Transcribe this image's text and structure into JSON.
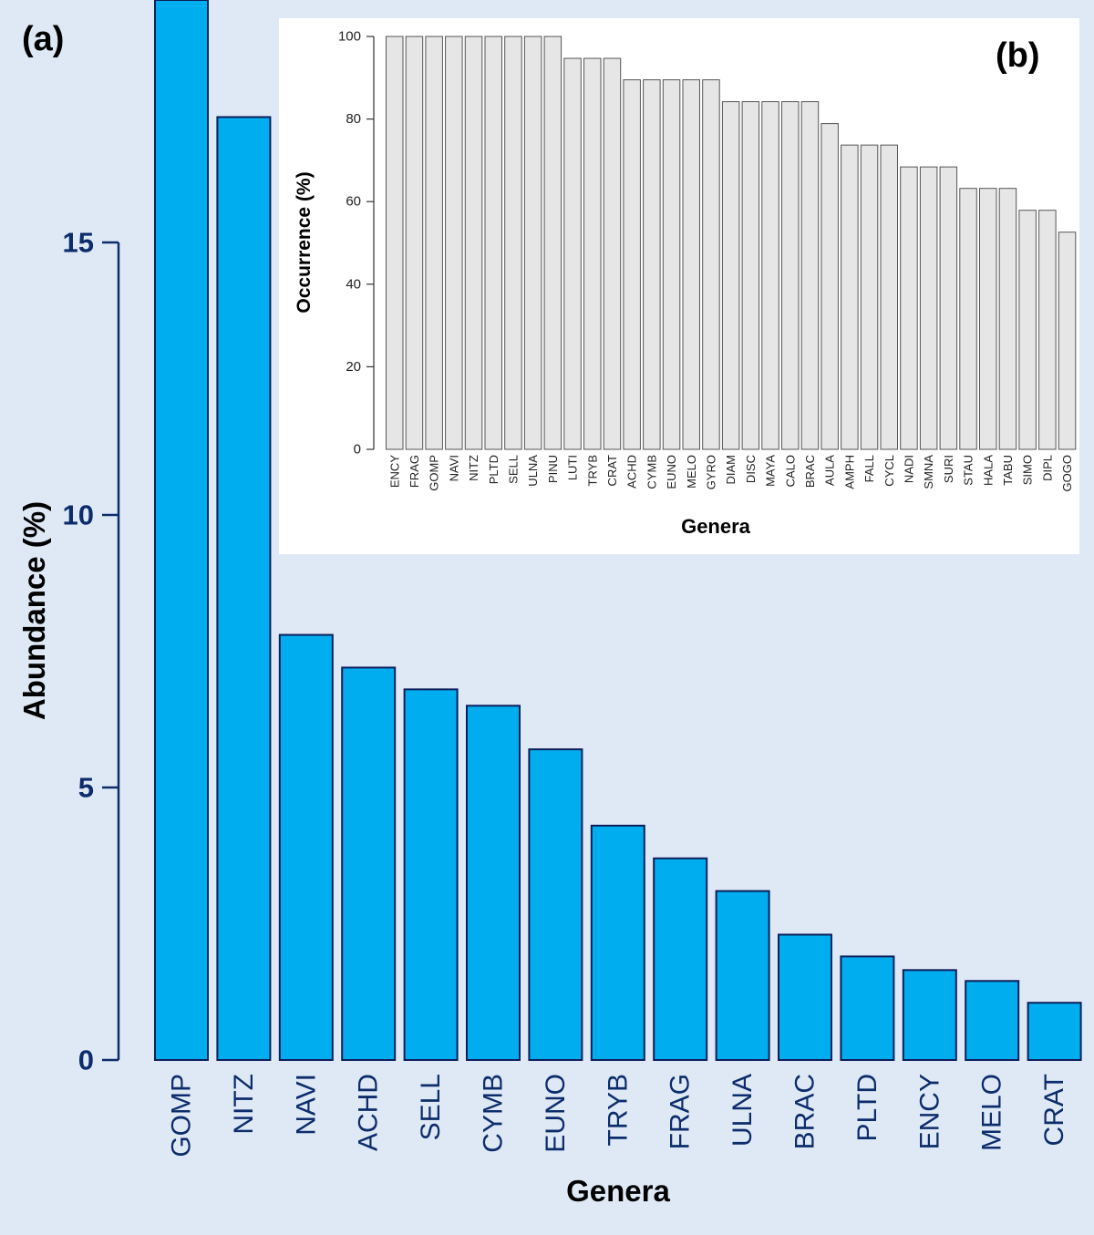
{
  "panel_labels": {
    "a": "(a)",
    "b": "(b)"
  },
  "colors": {
    "background": "#dfe9f6",
    "main_bar_fill": "#00aeef",
    "main_bar_stroke": "#0d1f5c",
    "main_axis_color": "#0d2c6b",
    "inset_bg": "#ffffff",
    "inset_bar_fill": "#e6e6e6",
    "inset_bar_stroke": "#555555"
  },
  "chart_data": [
    {
      "id": "main",
      "type": "bar",
      "xlabel": "Genera",
      "ylabel": "Abundance  (%)",
      "ylim": [
        0,
        19.5
      ],
      "yticks": [
        0,
        5,
        10,
        15
      ],
      "categories": [
        "GOMP",
        "NITZ",
        "NAVI",
        "ACHD",
        "SELL",
        "CYMB",
        "EUNO",
        "TRYB",
        "FRAG",
        "ULNA",
        "BRAC",
        "PLTD",
        "ENCY",
        "MELO",
        "CRAT"
      ],
      "values": [
        20.3,
        17.3,
        7.8,
        7.2,
        6.8,
        6.5,
        5.7,
        4.3,
        3.7,
        3.1,
        2.3,
        1.9,
        1.65,
        1.45,
        1.05
      ]
    },
    {
      "id": "inset",
      "type": "bar",
      "xlabel": "Genera",
      "ylabel": "Occurrence  (%)",
      "ylim": [
        0,
        100
      ],
      "yticks": [
        0,
        20,
        40,
        60,
        80,
        100
      ],
      "categories": [
        "ENCY",
        "FRAG",
        "GOMP",
        "NAVI",
        "NITZ",
        "PLTD",
        "SELL",
        "ULNA",
        "PINU",
        "LUTI",
        "TRYB",
        "CRAT",
        "ACHD",
        "CYMB",
        "EUNO",
        "MELO",
        "GYRO",
        "DIAM",
        "DISC",
        "MAYA",
        "CALO",
        "BRAC",
        "AULA",
        "AMPH",
        "FALL",
        "CYCL",
        "NADI",
        "SMNA",
        "SURI",
        "STAU",
        "HALA",
        "TABU",
        "SIMO",
        "DIPL",
        "GOGO"
      ],
      "values": [
        100,
        100,
        100,
        100,
        100,
        100,
        100,
        100,
        100,
        94.7,
        94.7,
        94.7,
        89.5,
        89.5,
        89.5,
        89.5,
        89.5,
        84.2,
        84.2,
        84.2,
        84.2,
        84.2,
        78.9,
        73.7,
        73.7,
        73.7,
        68.4,
        68.4,
        68.4,
        63.2,
        63.2,
        63.2,
        57.9,
        57.9,
        52.6
      ]
    }
  ]
}
